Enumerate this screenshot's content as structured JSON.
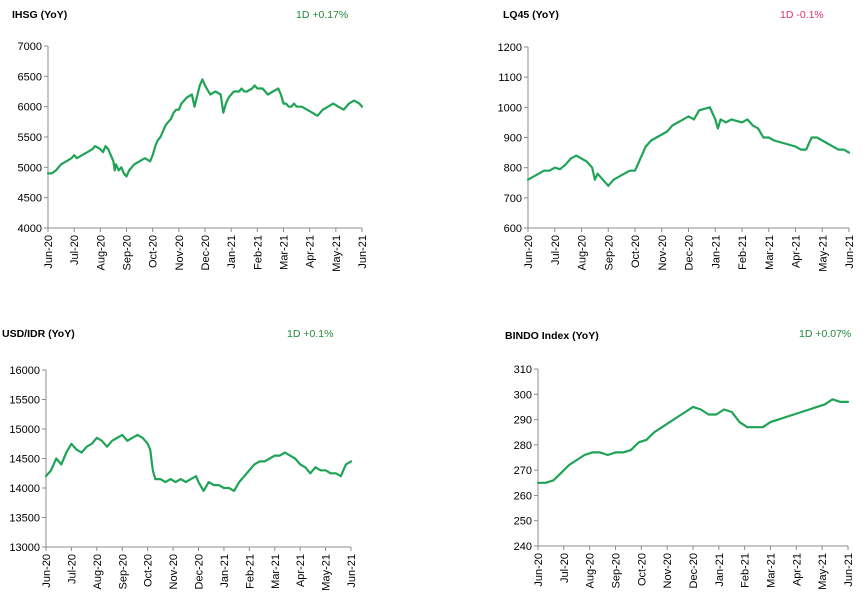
{
  "colors": {
    "line": "#1fa356",
    "positive": "#1f8a3a",
    "negative": "#e0316b",
    "axis": "#8c8c8c"
  },
  "chart_data": [
    {
      "type": "line",
      "title": "IHSG (YoY)",
      "change_label": "1D +0.17%",
      "change_direction": "positive",
      "ylim": [
        4000,
        7000
      ],
      "yticks": [
        4000,
        4500,
        5000,
        5500,
        6000,
        6500,
        7000
      ],
      "xticks": [
        "Jun-20",
        "Jul-20",
        "Aug-20",
        "Sep-20",
        "Oct-20",
        "Nov-20",
        "Dec-20",
        "Jan-21",
        "Feb-21",
        "Mar-21",
        "Apr-21",
        "May-21",
        "Jun-21"
      ],
      "series": [
        {
          "x": [
            0,
            0.15,
            0.3,
            0.5,
            0.7,
            0.9,
            1.0,
            1.1,
            1.3,
            1.5,
            1.7,
            1.8,
            2.0,
            2.1,
            2.2,
            2.3,
            2.4,
            2.5,
            2.55,
            2.6,
            2.7,
            2.8,
            2.9,
            3.0,
            3.1,
            3.3,
            3.5,
            3.7,
            3.9,
            4.0,
            4.1,
            4.2,
            4.3,
            4.4,
            4.5,
            4.6,
            4.7,
            4.8,
            4.9,
            5.0,
            5.1,
            5.2,
            5.3,
            5.5,
            5.6,
            5.8,
            5.9,
            6.0,
            6.2,
            6.4,
            6.6,
            6.7,
            6.8,
            6.9,
            7.0,
            7.1,
            7.2,
            7.3,
            7.4,
            7.5,
            7.6,
            7.8,
            7.9,
            8.0,
            8.2,
            8.4,
            8.6,
            8.8,
            8.9,
            9.0,
            9.1,
            9.2,
            9.3,
            9.4,
            9.5,
            9.7,
            9.9,
            10.1,
            10.3,
            10.5,
            10.7,
            10.9,
            11.1,
            11.3,
            11.5,
            11.7,
            11.9,
            12.0
          ],
          "y": [
            4900,
            4900,
            4950,
            5050,
            5100,
            5150,
            5200,
            5150,
            5200,
            5250,
            5300,
            5350,
            5300,
            5250,
            5350,
            5300,
            5200,
            5100,
            4950,
            5050,
            4950,
            5000,
            4900,
            4850,
            4950,
            5050,
            5100,
            5150,
            5100,
            5200,
            5350,
            5450,
            5500,
            5600,
            5700,
            5750,
            5800,
            5900,
            5950,
            5950,
            6050,
            6100,
            6150,
            6200,
            6000,
            6350,
            6450,
            6350,
            6200,
            6250,
            6200,
            5900,
            6050,
            6150,
            6200,
            6250,
            6250,
            6250,
            6300,
            6250,
            6250,
            6300,
            6350,
            6300,
            6300,
            6200,
            6250,
            6300,
            6200,
            6050,
            6050,
            6000,
            6000,
            6050,
            6000,
            6000,
            5950,
            5900,
            5850,
            5950,
            6000,
            6050,
            6000,
            5950,
            6050,
            6100,
            6050,
            6000
          ]
        }
      ]
    },
    {
      "type": "line",
      "title": "LQ45 (YoY)",
      "change_label": "1D -0.1%",
      "change_direction": "negative",
      "ylim": [
        600,
        1200
      ],
      "yticks": [
        600,
        700,
        800,
        900,
        1000,
        1100,
        1200
      ],
      "xticks": [
        "Jun-20",
        "Jul-20",
        "Aug-20",
        "Sep-20",
        "Oct-20",
        "Nov-20",
        "Dec-20",
        "Jan-21",
        "Feb-21",
        "Mar-21",
        "Apr-21",
        "May-21",
        "Jun-21"
      ],
      "series": [
        {
          "x": [
            0,
            0.2,
            0.4,
            0.6,
            0.8,
            1.0,
            1.2,
            1.4,
            1.6,
            1.8,
            2.0,
            2.2,
            2.4,
            2.5,
            2.6,
            2.8,
            3.0,
            3.2,
            3.4,
            3.6,
            3.8,
            4.0,
            4.1,
            4.2,
            4.4,
            4.6,
            4.8,
            5.0,
            5.2,
            5.4,
            5.6,
            5.8,
            6.0,
            6.2,
            6.4,
            6.6,
            6.8,
            7.0,
            7.1,
            7.2,
            7.4,
            7.6,
            7.8,
            8.0,
            8.2,
            8.4,
            8.6,
            8.8,
            9.0,
            9.2,
            9.4,
            9.6,
            9.8,
            10.0,
            10.2,
            10.4,
            10.6,
            10.8,
            11.0,
            11.2,
            11.4,
            11.6,
            11.8,
            12.0
          ],
          "y": [
            760,
            770,
            780,
            790,
            790,
            800,
            795,
            810,
            830,
            840,
            830,
            820,
            800,
            760,
            780,
            760,
            740,
            760,
            770,
            780,
            790,
            790,
            810,
            830,
            870,
            890,
            900,
            910,
            920,
            940,
            950,
            960,
            970,
            960,
            990,
            995,
            1000,
            960,
            930,
            960,
            950,
            960,
            955,
            950,
            960,
            940,
            930,
            900,
            900,
            890,
            885,
            880,
            875,
            870,
            860,
            860,
            900,
            900,
            890,
            880,
            870,
            860,
            860,
            850
          ]
        }
      ]
    },
    {
      "type": "line",
      "title": "USD/IDR  (YoY)",
      "change_label": "1D +0.1%",
      "change_direction": "positive",
      "ylim": [
        13000,
        16000
      ],
      "yticks": [
        13000,
        13500,
        14000,
        14500,
        15000,
        15500,
        16000
      ],
      "xticks": [
        "Jun-20",
        "Jul-20",
        "Aug-20",
        "Sep-20",
        "Oct-20",
        "Nov-20",
        "Dec-20",
        "Jan-21",
        "Feb-21",
        "Mar-21",
        "Apr-21",
        "May-21",
        "Jun-21"
      ],
      "series": [
        {
          "x": [
            0,
            0.2,
            0.4,
            0.6,
            0.8,
            1.0,
            1.2,
            1.4,
            1.6,
            1.8,
            2.0,
            2.2,
            2.4,
            2.6,
            2.8,
            3.0,
            3.2,
            3.4,
            3.6,
            3.8,
            4.0,
            4.1,
            4.2,
            4.3,
            4.5,
            4.7,
            4.9,
            5.1,
            5.3,
            5.5,
            5.7,
            5.9,
            6.0,
            6.2,
            6.4,
            6.6,
            6.8,
            7.0,
            7.2,
            7.4,
            7.6,
            7.8,
            8.0,
            8.2,
            8.4,
            8.6,
            8.8,
            9.0,
            9.2,
            9.4,
            9.6,
            9.8,
            10.0,
            10.2,
            10.4,
            10.6,
            10.8,
            11.0,
            11.2,
            11.4,
            11.6,
            11.8,
            12.0
          ],
          "y": [
            14200,
            14300,
            14500,
            14400,
            14600,
            14750,
            14650,
            14600,
            14700,
            14750,
            14850,
            14800,
            14700,
            14800,
            14850,
            14900,
            14800,
            14850,
            14900,
            14850,
            14750,
            14650,
            14300,
            14150,
            14150,
            14100,
            14150,
            14100,
            14150,
            14100,
            14150,
            14200,
            14100,
            13950,
            14100,
            14050,
            14050,
            14000,
            14000,
            13950,
            14100,
            14200,
            14300,
            14400,
            14450,
            14450,
            14500,
            14550,
            14550,
            14600,
            14550,
            14500,
            14400,
            14350,
            14250,
            14350,
            14300,
            14300,
            14250,
            14250,
            14200,
            14400,
            14450
          ]
        }
      ]
    },
    {
      "type": "line",
      "title": "BINDO Index (YoY)",
      "change_label": "1D +0.07%",
      "change_direction": "positive",
      "ylim": [
        240,
        310
      ],
      "yticks": [
        240,
        250,
        260,
        270,
        280,
        290,
        300,
        310
      ],
      "xticks": [
        "Jun-20",
        "Jul-20",
        "Aug-20",
        "Sep-20",
        "Oct-20",
        "Nov-20",
        "Dec-20",
        "Jan-21",
        "Feb-21",
        "Mar-21",
        "Apr-21",
        "May-21",
        "Jun-21"
      ],
      "series": [
        {
          "x": [
            0,
            0.3,
            0.6,
            0.9,
            1.2,
            1.5,
            1.8,
            2.1,
            2.4,
            2.7,
            3.0,
            3.3,
            3.6,
            3.9,
            4.2,
            4.5,
            4.8,
            5.1,
            5.4,
            5.7,
            6.0,
            6.3,
            6.6,
            6.9,
            7.2,
            7.5,
            7.8,
            8.1,
            8.4,
            8.7,
            9.0,
            9.3,
            9.6,
            9.9,
            10.2,
            10.5,
            10.8,
            11.1,
            11.4,
            11.7,
            12.0
          ],
          "y": [
            265,
            265,
            266,
            269,
            272,
            274,
            276,
            277,
            277,
            276,
            277,
            277,
            278,
            281,
            282,
            285,
            287,
            289,
            291,
            293,
            295,
            294,
            292,
            292,
            294,
            293,
            289,
            287,
            287,
            287,
            289,
            290,
            291,
            292,
            293,
            294,
            295,
            296,
            298,
            297,
            297
          ]
        }
      ]
    }
  ]
}
